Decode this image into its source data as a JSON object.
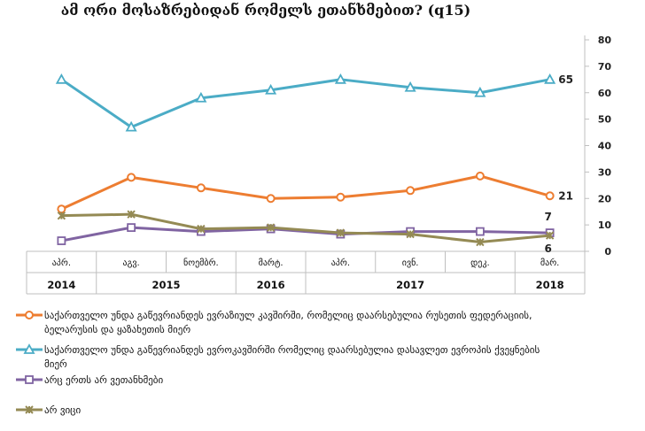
{
  "chart_data": {
    "type": "line",
    "title": "ამ ორი მოსაზრებიდან რომელს ეთანხმებით? (q15)",
    "ylim": [
      0,
      80
    ],
    "yticks": [
      0,
      10,
      20,
      30,
      40,
      50,
      60,
      70,
      80
    ],
    "grid": false,
    "legend_position": "bottom",
    "categories": [
      "აპრ.",
      "აგვ.",
      "ნოემბრ.",
      "მარტ.",
      "აპრ.",
      "ივნ.",
      "დეკ.",
      "მარ."
    ],
    "year_groups": [
      {
        "label": "2014",
        "span": 1
      },
      {
        "label": "2015",
        "span": 2
      },
      {
        "label": "2016",
        "span": 1
      },
      {
        "label": "2017",
        "span": 3
      },
      {
        "label": "2018",
        "span": 1
      }
    ],
    "series": [
      {
        "name": "საქართველო უნდა გაწევრიანდეს ევრაზიულ კავშირში, რომელიც დაარსებულია რუსეთის ფედერაციის, ბელარუსის და ყაზახეთის მიერ",
        "color": "#ed7d31",
        "marker": "circle",
        "values": [
          16,
          28,
          24,
          20,
          20.5,
          23,
          28.5,
          21
        ],
        "end_label": "21"
      },
      {
        "name": "საქართველო უნდა გაწევრიანდეს ევროკავშირში რომელიც დაარსებულია დასავლეთ ევროპის ქვეყნების მიერ",
        "color": "#4bacc6",
        "marker": "triangle",
        "values": [
          65,
          47,
          58,
          61,
          65,
          62,
          60,
          65
        ],
        "end_label": "65"
      },
      {
        "name": "არც ერთს არ ვეთანხმები",
        "color": "#8064a2",
        "marker": "square",
        "values": [
          4,
          9,
          7.5,
          8.5,
          6.5,
          7.5,
          7.5,
          7
        ],
        "end_label": "7"
      },
      {
        "name": "არ ვიცი",
        "color": "#948a54",
        "marker": "x",
        "values": [
          13.5,
          14,
          8.5,
          9,
          7,
          6.5,
          3.5,
          6
        ],
        "end_label": "6"
      }
    ]
  }
}
